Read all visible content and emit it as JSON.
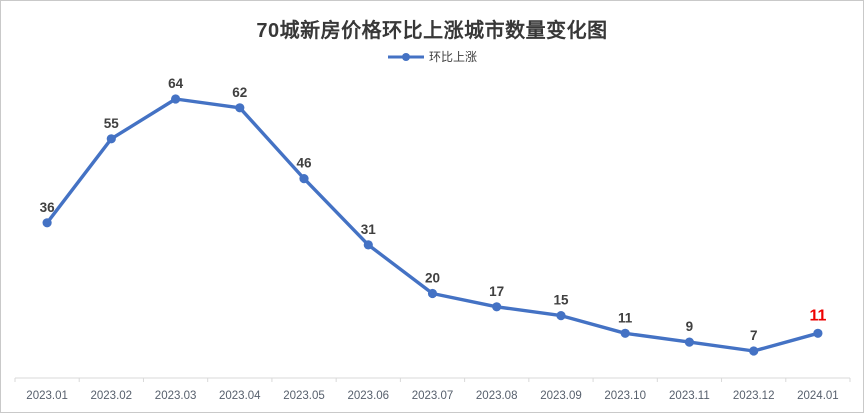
{
  "frame": {
    "background": "#ffffff",
    "border_color": "#c9c9c9"
  },
  "chart_data": {
    "type": "line",
    "title": "70城新房价格环比上涨城市数量变化图",
    "legend": {
      "label": "环比上涨",
      "position": "top-center"
    },
    "categories": [
      "2023.01",
      "2023.02",
      "2023.03",
      "2023.04",
      "2023.05",
      "2023.06",
      "2023.07",
      "2023.08",
      "2023.09",
      "2023.10",
      "2023.11",
      "2023.12",
      "2024.01"
    ],
    "series": [
      {
        "name": "环比上涨",
        "values": [
          36,
          55,
          64,
          62,
          46,
          31,
          20,
          17,
          15,
          11,
          9,
          7,
          11
        ]
      }
    ],
    "data_labels": true,
    "highlight": {
      "index": 12,
      "value": 11,
      "color": "#ee0000"
    },
    "xlabel": "",
    "ylabel": "",
    "ylim": [
      0,
      70
    ],
    "grid": false,
    "y_axis_visible": false,
    "colors": {
      "line": "#4472c4",
      "marker": "#4472c4",
      "data_label": "#404040",
      "axis_line": "#d9d9d9",
      "axis_label": "#57606d",
      "title": "#383838"
    }
  }
}
